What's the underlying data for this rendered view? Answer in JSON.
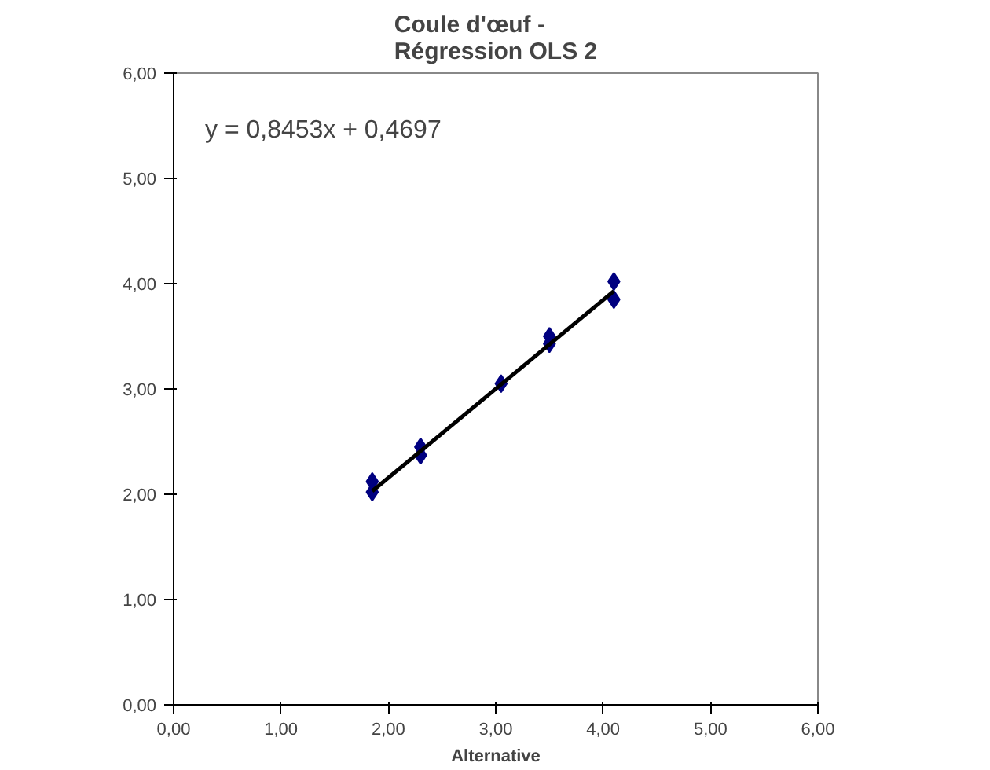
{
  "chart_data": {
    "type": "scatter",
    "title": "Coule d'œuf -\nRégression OLS 2",
    "xlabel": "Alternative",
    "xlim": [
      0,
      6
    ],
    "ylim": [
      0,
      6
    ],
    "xticks": [
      {
        "value": 0,
        "label": "0,00"
      },
      {
        "value": 1,
        "label": "1,00"
      },
      {
        "value": 2,
        "label": "2,00"
      },
      {
        "value": 3,
        "label": "3,00"
      },
      {
        "value": 4,
        "label": "4,00"
      },
      {
        "value": 5,
        "label": "5,00"
      },
      {
        "value": 6,
        "label": "6,00"
      }
    ],
    "yticks": [
      {
        "value": 0,
        "label": "0,00"
      },
      {
        "value": 1,
        "label": "1,00"
      },
      {
        "value": 2,
        "label": "2,00"
      },
      {
        "value": 3,
        "label": "3,00"
      },
      {
        "value": 4,
        "label": "4,00"
      },
      {
        "value": 5,
        "label": "5,00"
      },
      {
        "value": 6,
        "label": "6,00"
      }
    ],
    "grid": false,
    "annotations": [
      "y = 0,8453x + 0,4697"
    ],
    "series": [
      {
        "marker": "diamond",
        "color": "#000080",
        "x": [
          1.85,
          1.85,
          2.3,
          2.3,
          3.05,
          3.5,
          3.5,
          4.1,
          4.1
        ],
        "values": [
          2.12,
          2.02,
          2.45,
          2.37,
          3.05,
          3.5,
          3.43,
          4.02,
          3.85
        ]
      },
      {
        "type": "line",
        "color": "#000000",
        "x": [
          1.85,
          4.1
        ],
        "values": [
          2.03,
          3.93
        ]
      }
    ]
  }
}
